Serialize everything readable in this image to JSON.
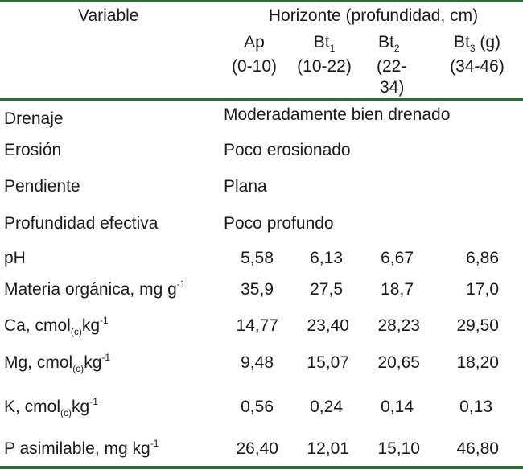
{
  "header": {
    "variable_label": "Variable",
    "horizon_group": "Horizonte (profundidad, cm)",
    "columns": [
      {
        "name": "Ap",
        "sub": "",
        "suffix": "",
        "range": "(0-10)"
      },
      {
        "name": "Bt",
        "sub": "1",
        "suffix": "",
        "range": "(10-22)"
      },
      {
        "name": "Bt",
        "sub": "2",
        "suffix": "",
        "range_line1": "(22-",
        "range_line2": "34)"
      },
      {
        "name": "Bt",
        "sub": "3",
        "suffix": " (g)",
        "range": "(34-46)"
      }
    ]
  },
  "descriptive_rows": [
    {
      "label": "Drenaje",
      "value": "Moderadamente bien drenado"
    },
    {
      "label": "Erosión",
      "value": "Poco erosionado"
    },
    {
      "label": "Pendiente",
      "value": "Plana"
    },
    {
      "label": "Profundidad efectiva",
      "value": "Poco profundo"
    }
  ],
  "numeric_rows": [
    {
      "label_main": "pH",
      "label_sub": "",
      "label_after": "",
      "label_sup": "",
      "values": [
        "5,58",
        "6,13",
        "6,67",
        "6,86"
      ]
    },
    {
      "label_main": "Materia orgánica, mg g",
      "label_sub": "",
      "label_after": "",
      "label_sup": "-1",
      "values": [
        "35,9",
        "27,5",
        "18,7",
        "17,0"
      ]
    },
    {
      "label_main": "Ca, cmol",
      "label_sub": "(c)",
      "label_after": "kg",
      "label_sup": "-1",
      "values": [
        "14,77",
        "23,40",
        "28,23",
        "29,50"
      ]
    },
    {
      "label_main": "Mg, cmol",
      "label_sub": "(c)",
      "label_after": "kg",
      "label_sup": "-1",
      "values": [
        "9,48",
        "15,07",
        "20,65",
        "18,20"
      ]
    },
    {
      "label_main": "K, cmol",
      "label_sub": "(c)",
      "label_after": "kg",
      "label_sup": "-1",
      "values": [
        "0,56",
        "0,24",
        "0,14",
        "0,13"
      ]
    },
    {
      "label_main": "P asimilable, mg kg",
      "label_sub": "",
      "label_after": "",
      "label_sup": "-1",
      "values": [
        "26,40",
        "12,01",
        "15,10",
        "46,80"
      ]
    }
  ],
  "colors": {
    "rule": "#2e6b34",
    "text": "#1a1a1a"
  }
}
